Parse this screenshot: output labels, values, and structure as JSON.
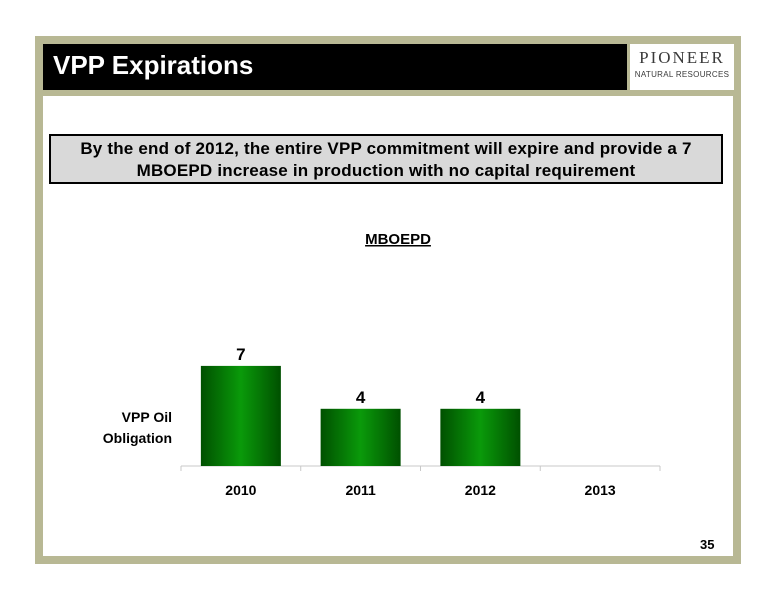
{
  "slide": {
    "title": "VPP Expirations",
    "page_number": "35",
    "callout": "By the end of 2012, the entire VPP commitment will expire and provide a 7 MBOEPD increase in production with no capital requirement"
  },
  "logo": {
    "name": "PIONEER",
    "subtitle": "NATURAL RESOURCES"
  },
  "colors": {
    "frame": "#b8b894",
    "bar_dark": "#005000",
    "bar_light": "#0a9a0a"
  },
  "chart_data": {
    "type": "bar",
    "title": "MBOEPD",
    "categories": [
      "2010",
      "2011",
      "2012",
      "2013"
    ],
    "series": [
      {
        "name": "VPP Oil Obligation",
        "values": [
          7,
          4,
          4,
          0
        ]
      }
    ],
    "data_labels": [
      "7",
      "4",
      "4",
      ""
    ],
    "ylim": [
      0,
      10
    ],
    "grid": false,
    "legend": "left"
  }
}
